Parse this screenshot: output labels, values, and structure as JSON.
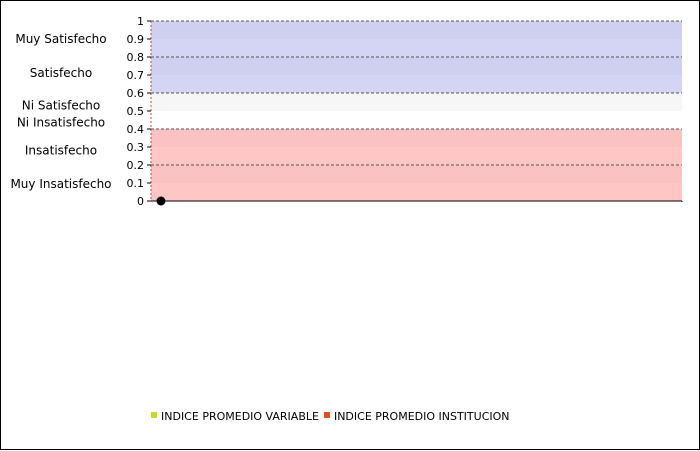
{
  "chart_data": {
    "type": "scatter",
    "title": "",
    "xlabel": "",
    "ylabel": "",
    "ylim": [
      0,
      1
    ],
    "y_ticks": [
      "0",
      "0.1",
      "0.2",
      "0.3",
      "0.4",
      "0.5",
      "0.6",
      "0.7",
      "0.8",
      "0.9",
      "1"
    ],
    "grid": true,
    "bands": [
      {
        "label": "Muy Satisfecho",
        "from": 0.8,
        "to": 1.0,
        "color": "#d4d4f4"
      },
      {
        "label": "Satisfecho",
        "from": 0.6,
        "to": 0.8,
        "color": "#d4d4f4"
      },
      {
        "label": "Ni Satisfecho",
        "from": 0.5,
        "to": 0.6,
        "color": "#f6f6f6"
      },
      {
        "label": "Ni Insatisfecho",
        "from": 0.4,
        "to": 0.5,
        "color": "#ffffff"
      },
      {
        "label": "Insatisfecho",
        "from": 0.2,
        "to": 0.4,
        "color": "#ffc6c6"
      },
      {
        "label": "Muy Insatisfecho",
        "from": 0.0,
        "to": 0.2,
        "color": "#ffc6c6"
      }
    ],
    "series": [
      {
        "name": "INDICE PROMEDIO VARIABLE",
        "color": "#c8d824",
        "points": []
      },
      {
        "name": "INDICE PROMEDIO INSTITUCION",
        "color": "#e05020",
        "points": []
      }
    ],
    "markers": [
      {
        "x": 0,
        "y": 0,
        "color": "#000000"
      }
    ],
    "legend_position": "bottom"
  }
}
